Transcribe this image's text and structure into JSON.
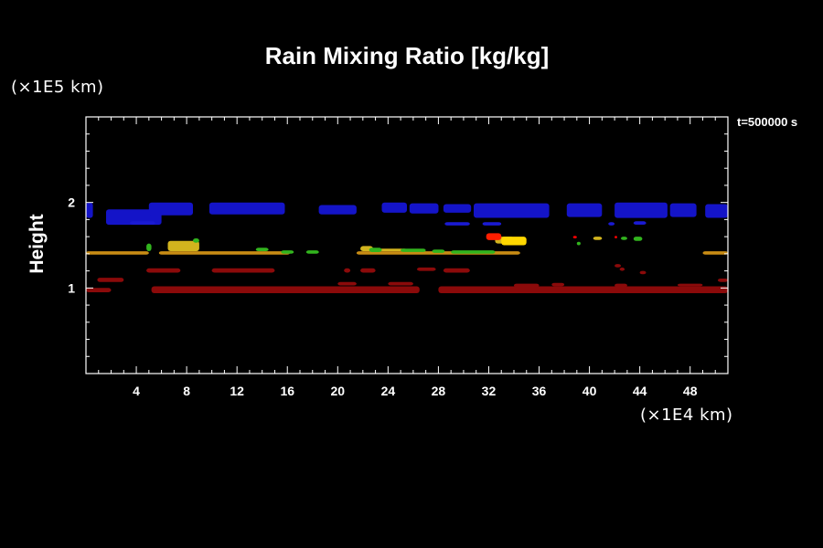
{
  "chart_data": {
    "type": "scatter",
    "title": "Rain Mixing Ratio [kg/kg]",
    "xlabel": "",
    "ylabel": "Height",
    "x_unit": "(×1E4 km)",
    "y_unit": "(×1E5 km)",
    "time_label": "t=500000 s",
    "xlim": [
      0,
      51
    ],
    "ylim": [
      0,
      3
    ],
    "x_ticks": [
      4,
      8,
      12,
      16,
      20,
      24,
      28,
      32,
      36,
      40,
      44,
      48
    ],
    "y_ticks": [
      1,
      2
    ],
    "grid": false,
    "colors": {
      "background": "#000000",
      "axes": "#ffffff"
    },
    "series": [
      {
        "color": "#1414c8",
        "segments": [
          [
            0,
            0.55,
            1.82,
            2.0
          ],
          [
            1.6,
            6.0,
            1.74,
            1.92
          ],
          [
            5.0,
            8.5,
            1.85,
            2.0
          ],
          [
            9.8,
            15.8,
            1.86,
            2.0
          ],
          [
            18.5,
            21.5,
            1.86,
            1.97
          ],
          [
            23.5,
            25.5,
            1.88,
            2.0
          ],
          [
            25.7,
            28.0,
            1.87,
            1.99
          ],
          [
            28.4,
            30.6,
            1.88,
            1.98
          ],
          [
            30.8,
            36.8,
            1.82,
            1.99
          ],
          [
            38.2,
            41.0,
            1.83,
            1.99
          ],
          [
            42.0,
            46.2,
            1.82,
            2.0
          ],
          [
            46.4,
            48.5,
            1.83,
            1.99
          ],
          [
            49.2,
            51.0,
            1.82,
            1.98
          ]
        ]
      },
      {
        "color": "#1a1ad2",
        "segments": [
          [
            3.5,
            5.5,
            1.74,
            1.78
          ],
          [
            28.5,
            30.5,
            1.73,
            1.77
          ],
          [
            31.5,
            33.0,
            1.73,
            1.77
          ],
          [
            41.5,
            42.0,
            1.73,
            1.77
          ],
          [
            43.5,
            44.5,
            1.74,
            1.78
          ]
        ]
      },
      {
        "color": "#c88c14",
        "segments": [
          [
            0,
            5.0,
            1.39,
            1.43
          ],
          [
            5.8,
            16.2,
            1.39,
            1.43
          ],
          [
            21.5,
            34.5,
            1.39,
            1.43
          ],
          [
            49.0,
            51.0,
            1.39,
            1.43
          ]
        ]
      },
      {
        "color": "#d2b41e",
        "segments": [
          [
            6.5,
            9.0,
            1.43,
            1.55
          ],
          [
            21.8,
            22.8,
            1.43,
            1.49
          ],
          [
            23.0,
            25.5,
            1.43,
            1.46
          ],
          [
            32.5,
            34.0,
            1.52,
            1.6
          ],
          [
            40.3,
            41.0,
            1.56,
            1.6
          ]
        ]
      },
      {
        "color": "#ffd700",
        "segments": [
          [
            33.0,
            35.0,
            1.5,
            1.6
          ]
        ]
      },
      {
        "color": "#32b41e",
        "segments": [
          [
            4.8,
            5.2,
            1.43,
            1.52
          ],
          [
            8.5,
            9.0,
            1.53,
            1.58
          ],
          [
            13.5,
            14.5,
            1.43,
            1.47
          ],
          [
            15.5,
            16.5,
            1.4,
            1.44
          ],
          [
            17.5,
            18.5,
            1.4,
            1.44
          ],
          [
            22.5,
            23.5,
            1.42,
            1.47
          ],
          [
            25.0,
            27.0,
            1.42,
            1.46
          ],
          [
            27.5,
            28.5,
            1.41,
            1.45
          ],
          [
            29.0,
            32.5,
            1.4,
            1.44
          ],
          [
            39.0,
            39.3,
            1.5,
            1.54
          ],
          [
            42.5,
            43.0,
            1.56,
            1.6
          ],
          [
            43.5,
            44.2,
            1.55,
            1.6
          ]
        ]
      },
      {
        "color": "#ff1e00",
        "segments": [
          [
            31.8,
            33.0,
            1.56,
            1.64
          ]
        ]
      },
      {
        "color": "#ff0000",
        "segments": [
          [
            38.7,
            39.0,
            1.58,
            1.61
          ],
          [
            42.0,
            42.2,
            1.58,
            1.61
          ]
        ]
      },
      {
        "color": "#8b0a0a",
        "segments": [
          [
            0,
            2.0,
            0.95,
            1.0
          ],
          [
            0.9,
            3.0,
            1.07,
            1.12
          ],
          [
            4.8,
            7.5,
            1.18,
            1.23
          ],
          [
            10.0,
            15.0,
            1.18,
            1.23
          ],
          [
            5.2,
            26.5,
            0.94,
            1.02
          ],
          [
            20.0,
            21.5,
            1.03,
            1.07
          ],
          [
            24.0,
            26.0,
            1.03,
            1.07
          ],
          [
            20.5,
            21.0,
            1.18,
            1.23
          ],
          [
            21.8,
            23.0,
            1.18,
            1.23
          ],
          [
            26.3,
            27.8,
            1.2,
            1.24
          ],
          [
            28.4,
            30.5,
            1.18,
            1.23
          ],
          [
            28.0,
            51.0,
            0.94,
            1.02
          ],
          [
            34.0,
            36.0,
            1.01,
            1.05
          ],
          [
            37.0,
            38.0,
            1.02,
            1.06
          ],
          [
            42.0,
            43.0,
            1.01,
            1.05
          ],
          [
            42.0,
            42.5,
            1.24,
            1.28
          ],
          [
            42.4,
            42.8,
            1.2,
            1.24
          ],
          [
            44.0,
            44.5,
            1.16,
            1.2
          ],
          [
            47.0,
            49.0,
            1.02,
            1.05
          ],
          [
            50.2,
            51.0,
            1.07,
            1.11
          ]
        ]
      }
    ]
  }
}
